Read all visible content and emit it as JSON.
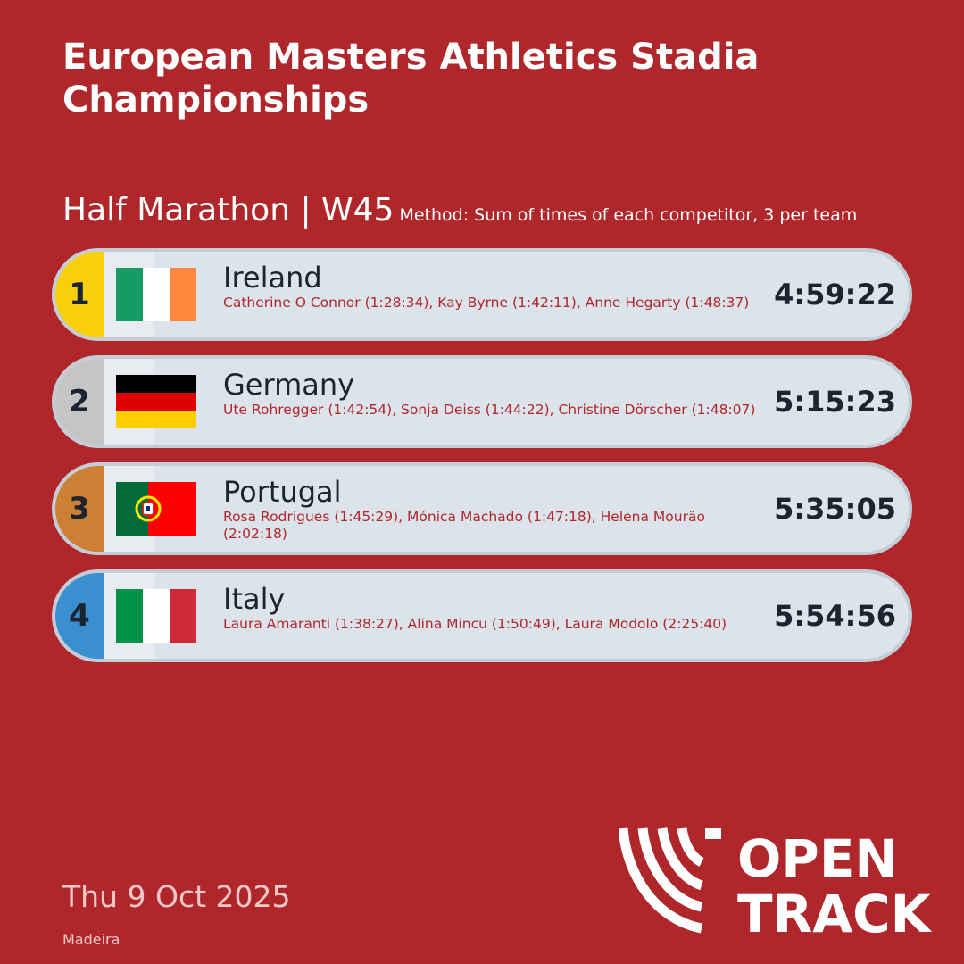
{
  "title": "European Masters Athletics Stadia Championships",
  "event": "Half Marathon | W45",
  "method": "Method: Sum of times of each competitor, 3 per team",
  "results": [
    {
      "rank": "1",
      "rank_color": "#f7cf0b",
      "country": "Ireland",
      "flag": "ireland-flag",
      "athletes": "Catherine O Connor (1:28:34), Kay Byrne (1:42:11), Anne Hegarty (1:48:37)",
      "time": "4:59:22"
    },
    {
      "rank": "2",
      "rank_color": "#c5c5c5",
      "country": "Germany",
      "flag": "germany-flag",
      "athletes": "Ute Rohregger (1:42:54), Sonja Deiss (1:44:22), Christine Dörscher (1:48:07)",
      "time": "5:15:23"
    },
    {
      "rank": "3",
      "rank_color": "#cd8033",
      "country": "Portugal",
      "flag": "portugal-flag",
      "athletes": "Rosa Rodrigues (1:45:29), Mónica Machado (1:47:18), Helena Mourão (2:02:18)",
      "time": "5:35:05"
    },
    {
      "rank": "4",
      "rank_color": "#3a8fd0",
      "country": "Italy",
      "flag": "italy-flag",
      "athletes": "Laura Amaranti (1:38:27), Alina Mincu (1:50:49), Laura Modolo (2:25:40)",
      "time": "5:54:56"
    }
  ],
  "date": "Thu 9 Oct 2025",
  "venue": "Madeira",
  "logo": {
    "line1": "OPEN",
    "line2": "TRACK",
    "icon": "opentrack-logo-icon"
  },
  "colors": {
    "background": "#b0272b",
    "row_background": "#dde3ea",
    "athlete_text": "#b0272b"
  }
}
